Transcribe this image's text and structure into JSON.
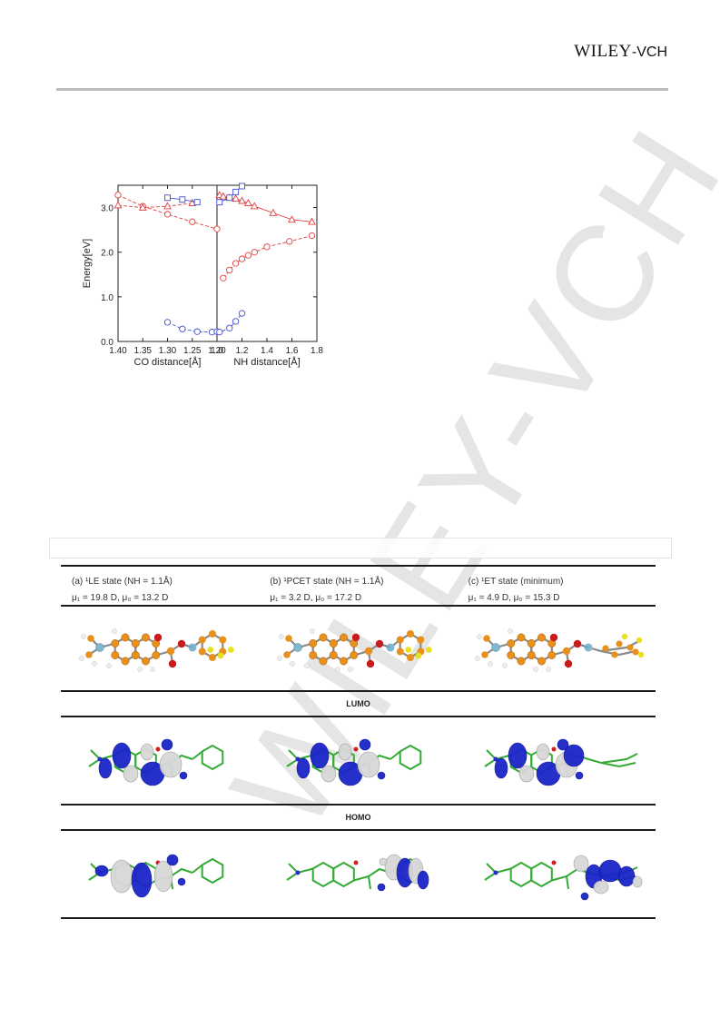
{
  "header": {
    "logo_main": "WILEY",
    "logo_sub": "-VCH"
  },
  "watermark": {
    "text": "WILEY-VCH"
  },
  "chart_data": {
    "type": "line",
    "ylabel": "Energy[eV]",
    "ylim": [
      0.0,
      3.5
    ],
    "y_ticks": [
      "0.0",
      "1.0",
      "2.0",
      "3.0"
    ],
    "left_panel": {
      "xlabel": "CO distance[Å]",
      "xlim": [
        1.4,
        1.2
      ],
      "x_ticks": [
        "1.40",
        "1.35",
        "1.30",
        "1.25",
        "1.20"
      ],
      "series": [
        {
          "marker": "circle",
          "color": "#e04040",
          "dash": true,
          "x": [
            1.4,
            1.35,
            1.3,
            1.25,
            1.2
          ],
          "y": [
            3.28,
            3.03,
            2.85,
            2.68,
            2.52
          ]
        },
        {
          "marker": "triangle",
          "color": "#e04040",
          "dash": true,
          "x": [
            1.4,
            1.35,
            1.3,
            1.25
          ],
          "y": [
            3.05,
            3.0,
            3.03,
            3.1
          ]
        },
        {
          "marker": "square",
          "color": "#4050d0",
          "dash": false,
          "x": [
            1.3,
            1.27,
            1.24
          ],
          "y": [
            3.22,
            3.18,
            3.12
          ]
        },
        {
          "marker": "circle",
          "color": "#4050d0",
          "dash": true,
          "x": [
            1.3,
            1.27,
            1.24,
            1.21
          ],
          "y": [
            0.43,
            0.28,
            0.22,
            0.21
          ]
        }
      ]
    },
    "right_panel": {
      "xlabel": "NH distance[Å]",
      "xlim": [
        1.0,
        1.8
      ],
      "x_ticks": [
        "1.0",
        "1.2",
        "1.4",
        "1.6",
        "1.8"
      ],
      "series": [
        {
          "marker": "triangle",
          "color": "#e04040",
          "dash": false,
          "x": [
            1.02,
            1.05,
            1.1,
            1.15,
            1.2,
            1.25,
            1.3,
            1.45,
            1.6,
            1.76
          ],
          "y": [
            3.28,
            3.25,
            3.22,
            3.2,
            3.15,
            3.1,
            3.03,
            2.88,
            2.73,
            2.68
          ]
        },
        {
          "marker": "square",
          "color": "#4050d0",
          "dash": false,
          "x": [
            1.02,
            1.1,
            1.15,
            1.2
          ],
          "y": [
            3.12,
            3.22,
            3.35,
            3.48
          ]
        },
        {
          "marker": "circle",
          "color": "#e04040",
          "dash": true,
          "x": [
            1.05,
            1.1,
            1.15,
            1.2,
            1.25,
            1.3,
            1.4,
            1.58,
            1.76
          ],
          "y": [
            1.42,
            1.6,
            1.75,
            1.85,
            1.93,
            2.0,
            2.12,
            2.24,
            2.37
          ]
        },
        {
          "marker": "circle",
          "color": "#4050d0",
          "dash": true,
          "x": [
            1.0,
            1.02,
            1.1,
            1.15,
            1.2
          ],
          "y": [
            0.22,
            0.21,
            0.3,
            0.45,
            0.63
          ]
        }
      ]
    }
  },
  "table": {
    "states": [
      {
        "title": "(a) ¹LE state (NH = 1.1Å)",
        "dipole": "μ₁ = 19.8 D, μ₀ = 13.2 D"
      },
      {
        "title": "(b) ¹PCET state (NH = 1.1Å)",
        "dipole": "μ₁ = 3.2 D, μ₀ = 17.2 D"
      },
      {
        "title": "(c) ¹ET state (minimum)",
        "dipole": "μ₁ = 4.9 D, μ₀ = 15.3 D"
      }
    ],
    "lumo_label": "LUMO",
    "homo_label": "HOMO"
  },
  "colors": {
    "red_series": "#e04040",
    "blue_series": "#4050d0",
    "lobe_blue": "#1a24c8",
    "lobe_white": "#d8d8d8",
    "bond_green": "#33aa33"
  }
}
